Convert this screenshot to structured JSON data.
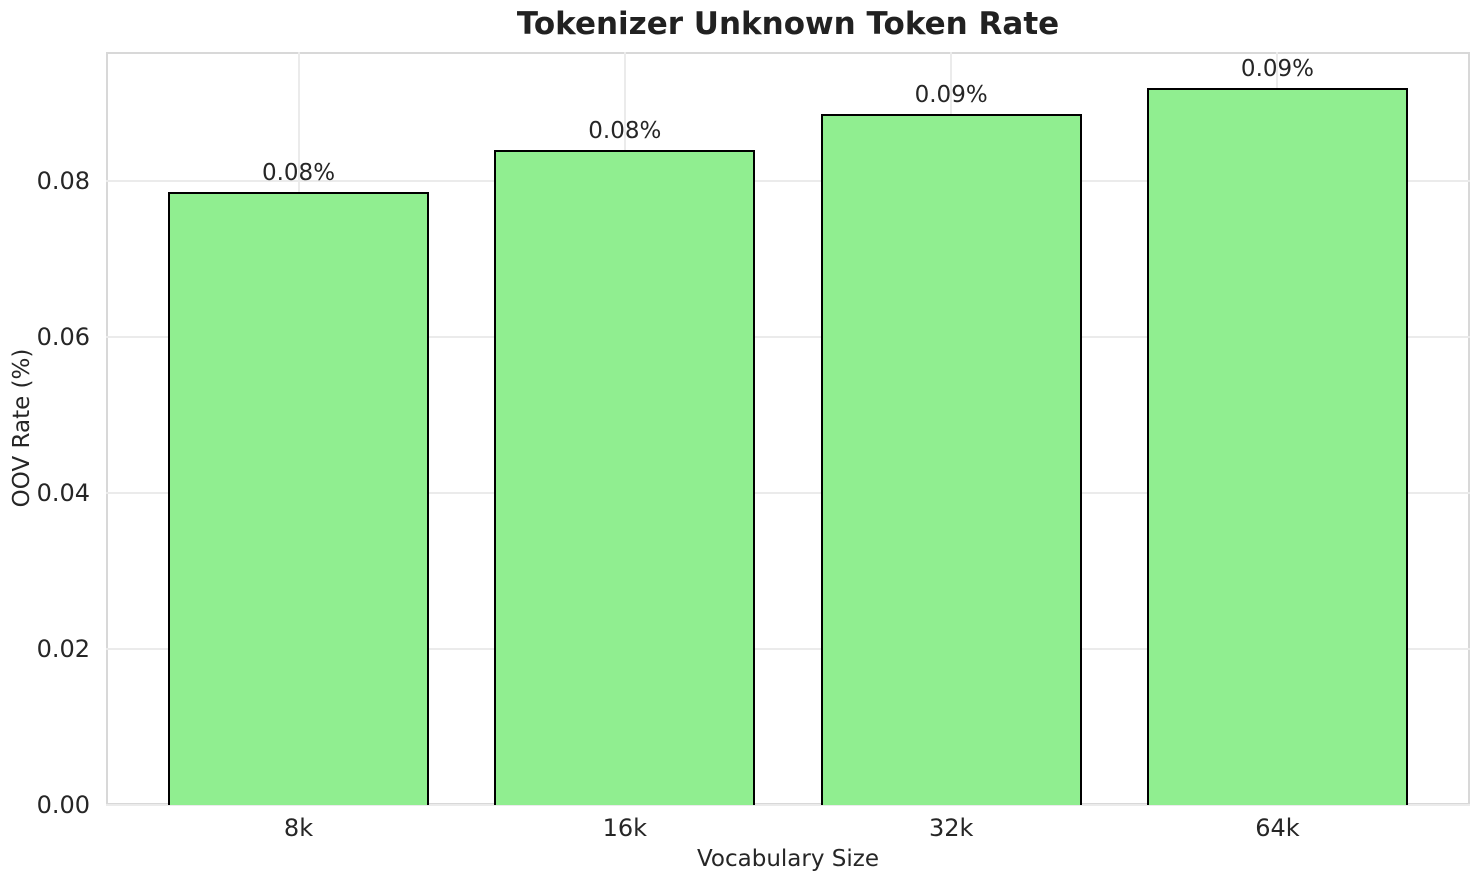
{
  "chart_data": {
    "type": "bar",
    "title": "Tokenizer Unknown Token Rate",
    "xlabel": "Vocabulary Size",
    "ylabel": "OOV Rate (%)",
    "categories": [
      "8k",
      "16k",
      "32k",
      "64k"
    ],
    "values": [
      0.0786,
      0.084,
      0.0885,
      0.0919
    ],
    "bar_labels": [
      "0.08%",
      "0.08%",
      "0.09%",
      "0.09%"
    ],
    "yticks": [
      0.0,
      0.02,
      0.04,
      0.06,
      0.08
    ],
    "ytick_labels": [
      "0.00",
      "0.02",
      "0.04",
      "0.06",
      "0.08"
    ],
    "ylim": [
      0,
      0.0965
    ],
    "grid": true,
    "legend": false,
    "bar_color": "#90EE90",
    "bar_edge_color": "#000000",
    "grid_color": "#ebebeb",
    "spine_color": "#d8d8d8",
    "text_color": "#262626"
  }
}
